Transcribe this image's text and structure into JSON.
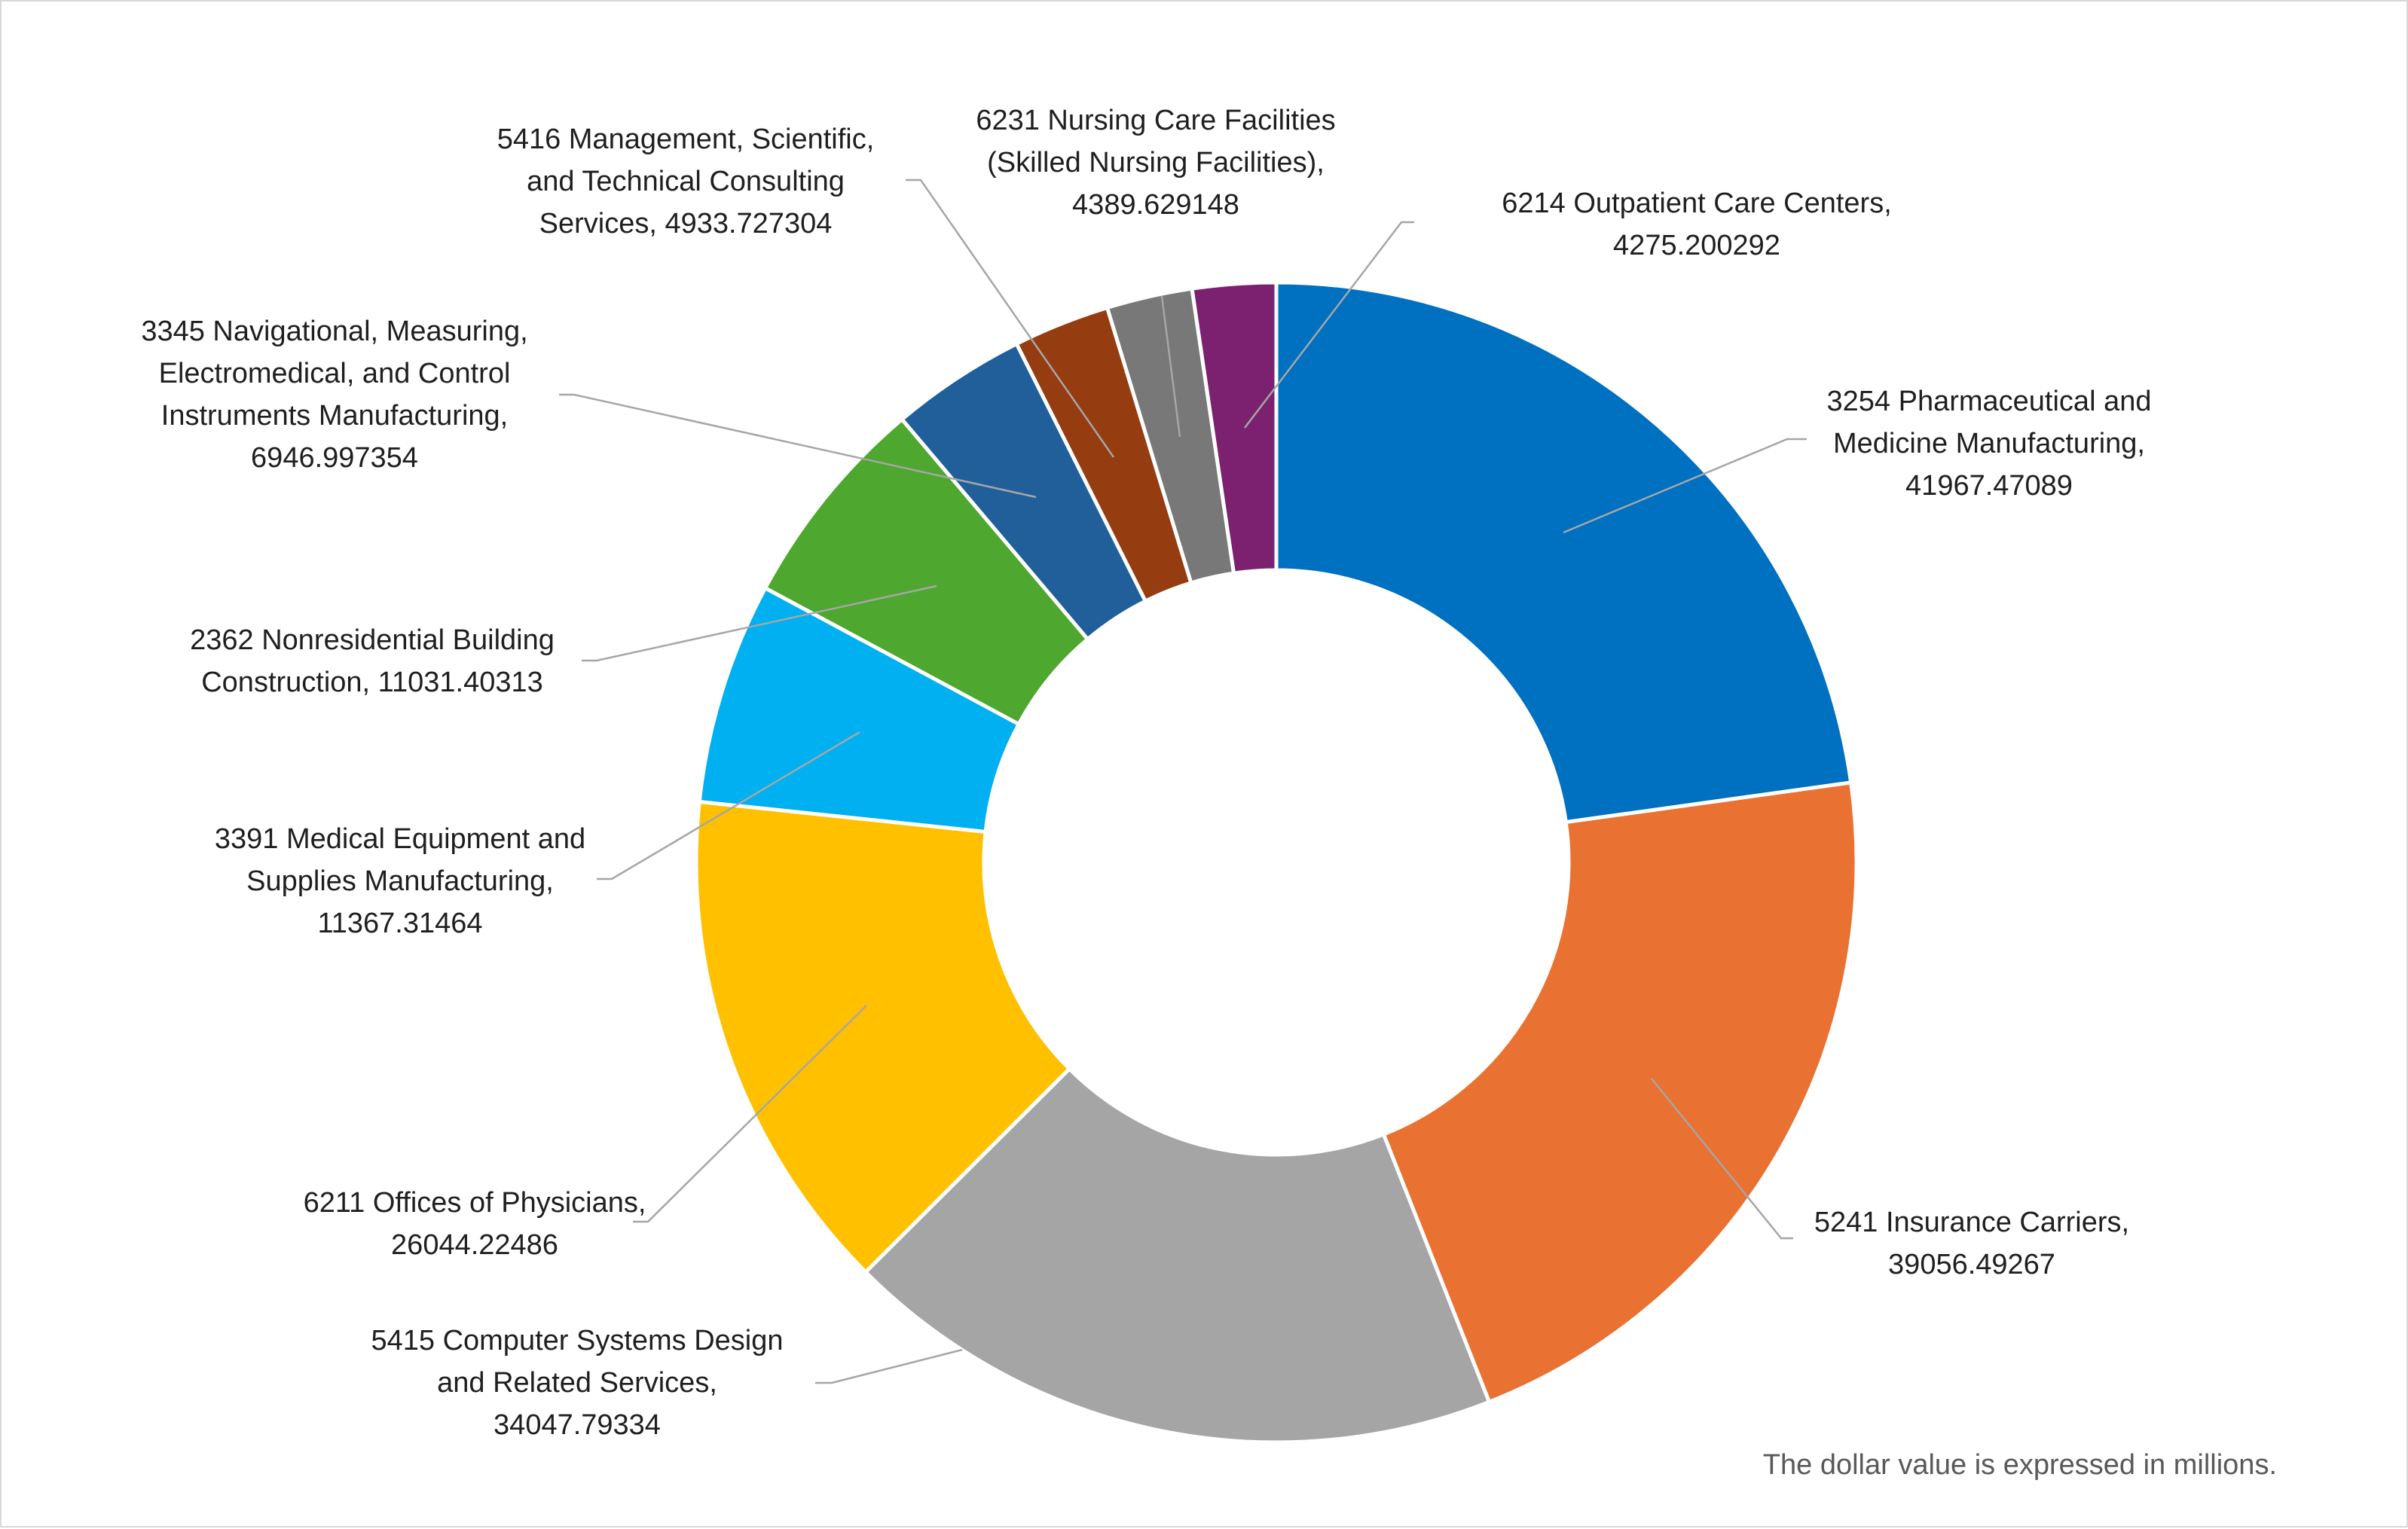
{
  "chart_data": {
    "type": "donut",
    "note": "The dollar value is expressed in millions.",
    "slices": [
      {
        "label_lines": [
          "3254 Pharmaceutical and",
          "Medicine Manufacturing,",
          "41967.47089"
        ],
        "category": "3254 Pharmaceutical and Medicine Manufacturing",
        "value": 41967.47089,
        "color": "#0070C0"
      },
      {
        "label_lines": [
          "5241 Insurance Carriers,",
          "39056.49267"
        ],
        "category": "5241 Insurance Carriers",
        "value": 39056.49267,
        "color": "#E97132"
      },
      {
        "label_lines": [
          "5415 Computer Systems Design",
          "and Related Services,",
          "34047.79334"
        ],
        "category": "5415 Computer Systems Design and Related Services",
        "value": 34047.79334,
        "color": "#A5A5A5"
      },
      {
        "label_lines": [
          "6211 Offices of Physicians,",
          "26044.22486"
        ],
        "category": "6211 Offices of Physicians",
        "value": 26044.22486,
        "color": "#FFC000"
      },
      {
        "label_lines": [
          "3391 Medical Equipment and",
          "Supplies Manufacturing,",
          "11367.31464"
        ],
        "category": "3391 Medical Equipment and Supplies Manufacturing",
        "value": 11367.31464,
        "color": "#00B0F0"
      },
      {
        "label_lines": [
          "2362 Nonresidential Building",
          "Construction, 11031.40313"
        ],
        "category": "2362 Nonresidential Building Construction",
        "value": 11031.40313,
        "color": "#4EA72E"
      },
      {
        "label_lines": [
          "3345 Navigational, Measuring,",
          "Electromedical, and Control",
          "Instruments Manufacturing,",
          "6946.997354"
        ],
        "category": "3345 Navigational, Measuring, Electromedical, and Control Instruments Manufacturing",
        "value": 6946.997354,
        "color": "#215F9A"
      },
      {
        "label_lines": [
          "5416 Management, Scientific,",
          "and Technical Consulting",
          "Services, 4933.727304"
        ],
        "category": "5416 Management, Scientific, and Technical Consulting Services",
        "value": 4933.727304,
        "color": "#963C11"
      },
      {
        "label_lines": [
          "6231 Nursing Care Facilities",
          "(Skilled Nursing Facilities),",
          "4389.629148"
        ],
        "category": "6231 Nursing Care Facilities (Skilled Nursing Facilities)",
        "value": 4389.629148,
        "color": "#787878"
      },
      {
        "label_lines": [
          "6214 Outpatient Care Centers,",
          "4275.200292"
        ],
        "category": "6214 Outpatient Care Centers",
        "value": 4275.200292,
        "color": "#7B2170"
      }
    ]
  }
}
